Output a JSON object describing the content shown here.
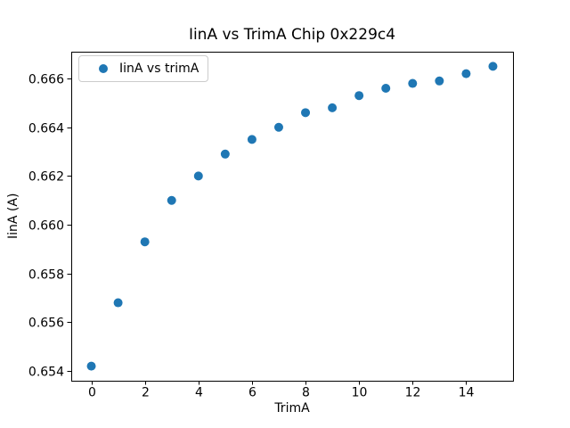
{
  "chart_data": {
    "type": "scatter",
    "title": "IinA vs TrimA Chip 0x229c4",
    "xlabel": "TrimA",
    "ylabel": "IinA (A)",
    "legend_label": "IinA vs trimA",
    "legend_position": "upper left",
    "grid": false,
    "marker_color": "#1f77b4",
    "axis_color": "#000000",
    "legend_border_color": "#cccccc",
    "x": [
      0,
      1,
      2,
      3,
      4,
      5,
      6,
      7,
      8,
      9,
      10,
      11,
      12,
      13,
      14,
      15
    ],
    "series": [
      {
        "name": "IinA vs trimA",
        "values": [
          0.6542,
          0.6568,
          0.6593,
          0.661,
          0.662,
          0.6629,
          0.6635,
          0.664,
          0.6646,
          0.6648,
          0.6653,
          0.6656,
          0.6658,
          0.6659,
          0.6662,
          0.6665
        ]
      }
    ],
    "xlim": [
      -0.75,
      15.75
    ],
    "ylim": [
      0.6536,
      0.6671
    ],
    "xticks": [
      0,
      2,
      4,
      6,
      8,
      10,
      12,
      14
    ],
    "xtick_labels": [
      "0",
      "2",
      "4",
      "6",
      "8",
      "10",
      "12",
      "14"
    ],
    "yticks": [
      0.654,
      0.656,
      0.658,
      0.66,
      0.662,
      0.664,
      0.666
    ],
    "ytick_labels": [
      "0.654",
      "0.656",
      "0.658",
      "0.660",
      "0.662",
      "0.664",
      "0.666"
    ]
  }
}
